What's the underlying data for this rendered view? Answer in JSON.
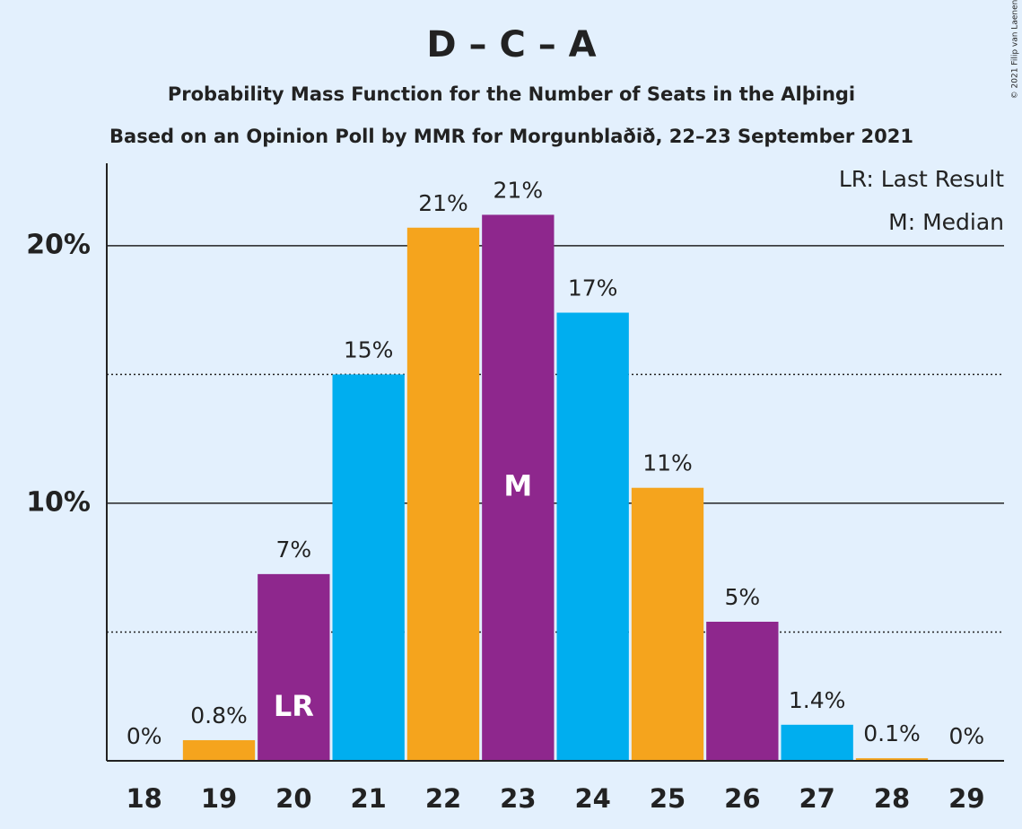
{
  "chart_data": {
    "type": "bar",
    "title": "D – C – A",
    "subtitle": "Probability Mass Function for the Number of Seats in the Alþingi",
    "subtitle2": "Based on an Opinion Poll by MMR for Morgunblaðið, 22–23 September 2021",
    "copyright": "© 2021 Filip van Laenen",
    "categories": [
      "18",
      "19",
      "20",
      "21",
      "22",
      "23",
      "24",
      "25",
      "26",
      "27",
      "28",
      "29"
    ],
    "values": [
      0,
      0.8,
      7.25,
      15.0,
      20.7,
      21.2,
      17.4,
      10.6,
      5.4,
      1.4,
      0.1,
      0
    ],
    "value_labels": [
      "0%",
      "0.8%",
      "7%",
      "15%",
      "21%",
      "21%",
      "17%",
      "11%",
      "5%",
      "1.4%",
      "0.1%",
      "0%"
    ],
    "colors": [
      "#f5a41d",
      "#f5a41d",
      "#8e278d",
      "#00aeef",
      "#f5a41d",
      "#8e278d",
      "#00aeef",
      "#f5a41d",
      "#8e278d",
      "#00aeef",
      "#f5a41d",
      "#8e278d"
    ],
    "ylim": [
      0,
      23.2
    ],
    "yticks": [
      {
        "value": 10,
        "label": "10%"
      },
      {
        "value": 20,
        "label": "20%"
      }
    ],
    "minor_yticks": [
      5,
      15
    ],
    "grid": true,
    "annotations": [
      {
        "label": "LR",
        "category": "20"
      },
      {
        "label": "M",
        "category": "23"
      }
    ],
    "legend": [
      "LR: Last Result",
      "M: Median"
    ],
    "legend_position": "top-right"
  }
}
